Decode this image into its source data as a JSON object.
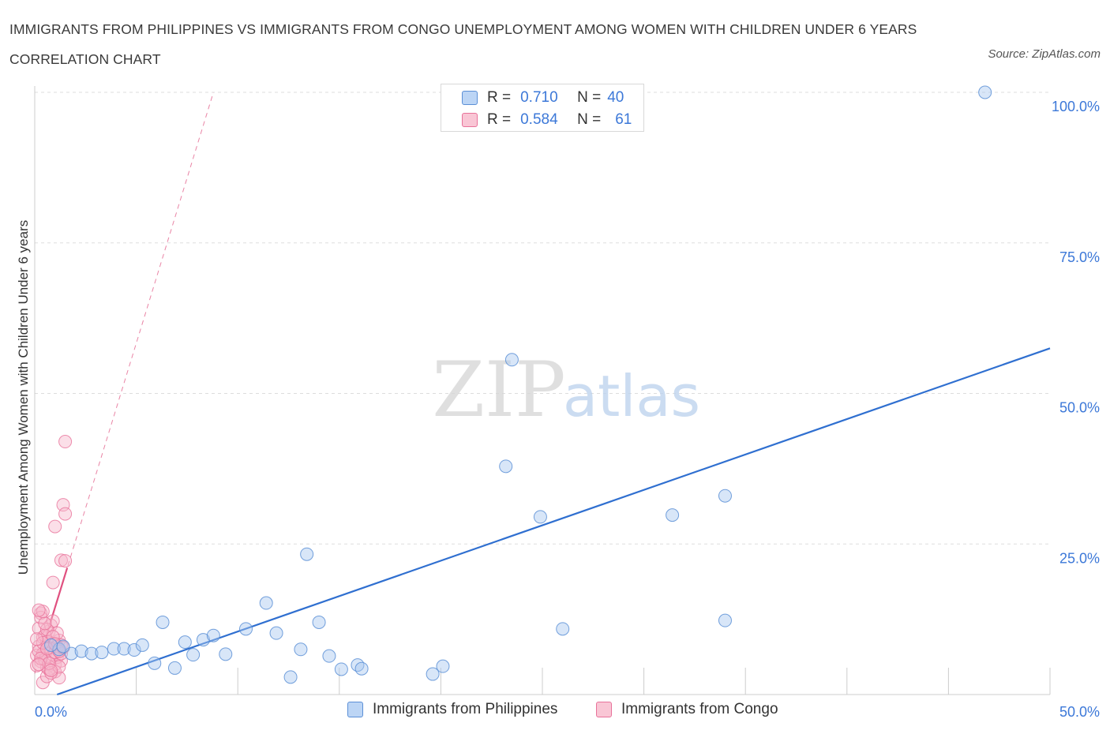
{
  "title": "IMMIGRANTS FROM PHILIPPINES VS IMMIGRANTS FROM CONGO UNEMPLOYMENT AMONG WOMEN WITH CHILDREN UNDER 6 YEARS CORRELATION CHART",
  "source": "Source: ZipAtlas.com",
  "watermark": {
    "zip": "ZIP",
    "atlas": "atlas"
  },
  "colors": {
    "philippines_fill": "#a8c8f0",
    "philippines_stroke": "#5b8fd6",
    "philippines_line": "#2f6fd0",
    "congo_fill": "#f7b8cb",
    "congo_stroke": "#e8729a",
    "congo_line": "#e0507f",
    "axis_text": "#3c78d8",
    "grid": "#dddddd"
  },
  "legend_top": {
    "rows": [
      {
        "r_label": "R =",
        "r_value": "0.710",
        "n_label": "N =",
        "n_value": "40"
      },
      {
        "r_label": "R =",
        "r_value": "0.584",
        "n_label": "N =",
        "n_value": "61"
      }
    ]
  },
  "legend_bottom": {
    "items": [
      {
        "label": "Immigrants from Philippines"
      },
      {
        "label": "Immigrants from Congo"
      }
    ]
  },
  "chart_data": {
    "type": "scatter",
    "title": "IMMIGRANTS FROM PHILIPPINES VS IMMIGRANTS FROM CONGO UNEMPLOYMENT AMONG WOMEN WITH CHILDREN UNDER 6 YEARS CORRELATION CHART",
    "xlabel": "",
    "ylabel": "Unemployment Among Women with Children Under 6 years",
    "xlim": [
      0,
      50
    ],
    "ylim": [
      0,
      100
    ],
    "x_tick_labels": [
      "0.0%",
      "50.0%"
    ],
    "y_ticks": [
      25,
      50,
      75,
      100
    ],
    "y_tick_labels": [
      "25.0%",
      "50.0%",
      "75.0%",
      "100.0%"
    ],
    "grid": true,
    "legend": "top-center",
    "series": [
      {
        "name": "Immigrants from Philippines",
        "R": 0.71,
        "N": 40,
        "trend": {
          "x": [
            1.1,
            50
          ],
          "y": [
            0,
            57.5
          ],
          "style": "solid"
        },
        "points": [
          [
            1.2,
            7.5
          ],
          [
            1.8,
            6.8
          ],
          [
            2.3,
            7.2
          ],
          [
            2.8,
            6.8
          ],
          [
            3.3,
            7.0
          ],
          [
            3.9,
            7.6
          ],
          [
            4.4,
            7.6
          ],
          [
            4.9,
            7.4
          ],
          [
            5.3,
            8.2
          ],
          [
            5.9,
            5.2
          ],
          [
            6.3,
            12.0
          ],
          [
            6.9,
            4.4
          ],
          [
            7.4,
            8.7
          ],
          [
            7.8,
            6.6
          ],
          [
            8.3,
            9.1
          ],
          [
            8.8,
            9.8
          ],
          [
            9.4,
            6.7
          ],
          [
            10.4,
            10.9
          ],
          [
            11.4,
            15.2
          ],
          [
            11.9,
            10.2
          ],
          [
            12.6,
            2.9
          ],
          [
            13.1,
            7.5
          ],
          [
            13.4,
            23.3
          ],
          [
            14.0,
            12.0
          ],
          [
            14.5,
            6.4
          ],
          [
            15.1,
            4.2
          ],
          [
            15.9,
            4.9
          ],
          [
            16.1,
            4.3
          ],
          [
            19.6,
            3.4
          ],
          [
            20.1,
            4.7
          ],
          [
            23.2,
            37.9
          ],
          [
            23.5,
            55.6
          ],
          [
            24.9,
            29.5
          ],
          [
            26.0,
            10.9
          ],
          [
            31.4,
            29.8
          ],
          [
            34.0,
            33.0
          ],
          [
            34.0,
            12.3
          ],
          [
            46.8,
            100.0
          ],
          [
            0.8,
            8.2
          ],
          [
            1.4,
            8.0
          ]
        ]
      },
      {
        "name": "Immigrants from Congo",
        "R": 0.584,
        "N": 61,
        "trend": {
          "x": [
            0,
            8.8
          ],
          "y": [
            3.5,
            100
          ],
          "style": "dashed",
          "solid_until_x": 1.6
        },
        "points": [
          [
            0.1,
            6.5
          ],
          [
            0.2,
            8.0
          ],
          [
            0.3,
            5.5
          ],
          [
            0.4,
            9.5
          ],
          [
            0.5,
            7.0
          ],
          [
            0.6,
            4.5
          ],
          [
            0.7,
            10.5
          ],
          [
            0.8,
            6.0
          ],
          [
            0.9,
            8.5
          ],
          [
            1.0,
            5.0
          ],
          [
            1.1,
            7.5
          ],
          [
            0.2,
            11.0
          ],
          [
            0.3,
            13.5
          ],
          [
            0.4,
            6.8
          ],
          [
            0.6,
            8.8
          ],
          [
            0.8,
            11.5
          ],
          [
            1.0,
            3.8
          ],
          [
            1.2,
            9.0
          ],
          [
            0.1,
            4.8
          ],
          [
            0.5,
            5.8
          ],
          [
            0.7,
            7.8
          ],
          [
            0.9,
            12.2
          ],
          [
            1.1,
            6.2
          ],
          [
            1.3,
            8.2
          ],
          [
            0.4,
            2.0
          ],
          [
            0.6,
            3.0
          ],
          [
            1.2,
            2.8
          ],
          [
            0.3,
            12.8
          ],
          [
            0.5,
            9.8
          ],
          [
            0.7,
            4.2
          ],
          [
            0.9,
            6.6
          ],
          [
            1.1,
            10.2
          ],
          [
            1.3,
            5.6
          ],
          [
            0.2,
            7.2
          ],
          [
            0.4,
            8.6
          ],
          [
            0.6,
            10.8
          ],
          [
            0.8,
            3.6
          ],
          [
            1.0,
            7.0
          ],
          [
            1.2,
            4.6
          ],
          [
            0.1,
            9.2
          ],
          [
            0.3,
            6.0
          ],
          [
            0.5,
            11.8
          ],
          [
            0.7,
            5.2
          ],
          [
            0.9,
            9.6
          ],
          [
            1.1,
            8.0
          ],
          [
            1.3,
            6.8
          ],
          [
            0.2,
            5.0
          ],
          [
            0.4,
            13.8
          ],
          [
            0.6,
            7.6
          ],
          [
            0.8,
            4.0
          ],
          [
            1.0,
            8.4
          ],
          [
            1.2,
            7.2
          ],
          [
            1.5,
            42.0
          ],
          [
            1.4,
            31.5
          ],
          [
            1.5,
            30.0
          ],
          [
            1.0,
            27.9
          ],
          [
            1.3,
            22.3
          ],
          [
            1.5,
            22.2
          ],
          [
            0.9,
            18.6
          ],
          [
            0.2,
            14.0
          ],
          [
            1.4,
            7.8
          ]
        ]
      }
    ]
  }
}
